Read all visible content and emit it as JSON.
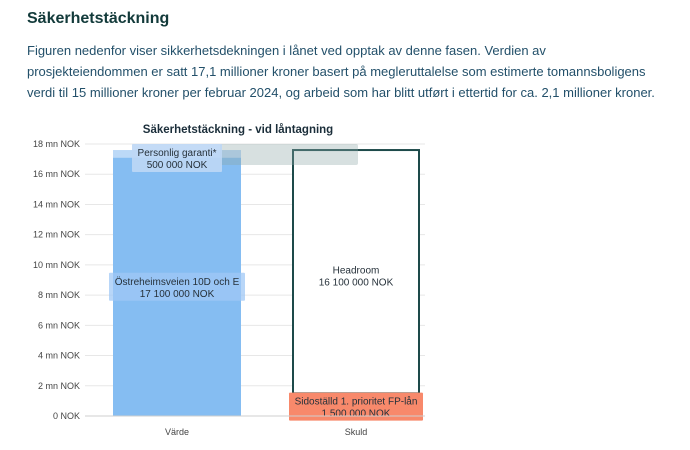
{
  "section": {
    "title": "Säkerhetstäckning",
    "description": "Figuren nedenfor viser sikkerhetsdekningen i lånet ved opptak av denne fasen. Verdien av prosjekteiendommen er satt 17,1 millioner kroner basert på megleruttalelse som estimerte tomannsboligens verdi til 15 millioner kroner per februar 2024, og arbeid som har blitt utført i ettertid for ca. 2,1 millioner kroner."
  },
  "chart_data": {
    "type": "bar",
    "title": "Säkerhetstäckning - vid låntagning",
    "categories": [
      "Värde",
      "Skuld"
    ],
    "ylim": [
      0,
      18000000
    ],
    "yticks": [
      {
        "value": 0,
        "label": "0 NOK"
      },
      {
        "value": 2000000,
        "label": "2 mn NOK"
      },
      {
        "value": 4000000,
        "label": "4 mn NOK"
      },
      {
        "value": 6000000,
        "label": "6 mn NOK"
      },
      {
        "value": 8000000,
        "label": "8 mn NOK"
      },
      {
        "value": 10000000,
        "label": "10 mn NOK"
      },
      {
        "value": 12000000,
        "label": "12 mn NOK"
      },
      {
        "value": 14000000,
        "label": "14 mn NOK"
      },
      {
        "value": 16000000,
        "label": "16 mn NOK"
      },
      {
        "value": 18000000,
        "label": "18 mn NOK"
      }
    ],
    "series": [
      {
        "name": "Östreheimsveien 10D och E",
        "category": "Värde",
        "base": 0,
        "value": 17100000,
        "value_label": "17 100 000 NOK",
        "color": "#85bdf2",
        "style": "filled"
      },
      {
        "name": "Personlig garanti*",
        "category": "Värde",
        "base": 17100000,
        "value": 500000,
        "value_label": "500 000 NOK",
        "color": "#bcd9f7",
        "style": "filled"
      },
      {
        "name": "Sidoställd 1. prioritet FP-lån",
        "category": "Skuld",
        "base": 0,
        "value": 1500000,
        "value_label": "1 500 000 NOK",
        "color": "#f8896b",
        "style": "filled"
      },
      {
        "name": "Headroom",
        "category": "Skuld",
        "base": 1500000,
        "value": 16100000,
        "value_label": "16 100 000 NOK",
        "color": "#1d4a4a",
        "style": "outline"
      }
    ]
  }
}
